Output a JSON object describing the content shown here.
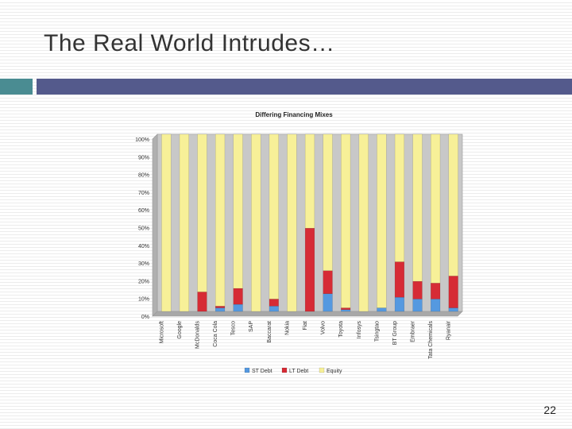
{
  "slide": {
    "title": "The Real World Intrudes…",
    "page_number": "22"
  },
  "colors": {
    "accent_teal": "#4a8c92",
    "accent_indigo": "#545a8c",
    "st_debt": "#5599e0",
    "lt_debt": "#d62b35",
    "equity": "#f7f098",
    "plot_bg": "#c8c8c8"
  },
  "chart_data": {
    "type": "bar",
    "stacked": true,
    "title": "Differing Financing Mixes",
    "xlabel": "",
    "ylabel": "",
    "ylim": [
      0,
      100
    ],
    "yticks": [
      "0%",
      "10%",
      "20%",
      "30%",
      "40%",
      "50%",
      "60%",
      "70%",
      "80%",
      "90%",
      "100%"
    ],
    "categories": [
      "Microsoft",
      "Google",
      "McDonalds",
      "Coca Cola",
      "Tesco",
      "SAP",
      "Baccarat",
      "Nokia",
      "Fiat",
      "Volvo",
      "Toyota",
      "Infosys",
      "Tsingtao",
      "BT Group",
      "Embraer",
      "Tata Chemicals",
      "Ryanair"
    ],
    "series": [
      {
        "name": "ST Debt",
        "color": "#5599e0",
        "values": [
          0,
          0,
          0,
          2,
          4,
          0,
          3,
          0,
          0,
          10,
          1,
          0,
          2,
          8,
          7,
          7,
          2
        ]
      },
      {
        "name": "LT Debt",
        "color": "#d62b35",
        "values": [
          0,
          0,
          11,
          1,
          9,
          0,
          4,
          0,
          47,
          13,
          1,
          0,
          0,
          20,
          10,
          9,
          18
        ]
      },
      {
        "name": "Equity",
        "color": "#f7f098",
        "values": [
          100,
          100,
          89,
          97,
          87,
          100,
          93,
          100,
          53,
          77,
          98,
          100,
          98,
          72,
          83,
          84,
          80
        ]
      }
    ],
    "legend_position": "bottom",
    "grid": false
  }
}
